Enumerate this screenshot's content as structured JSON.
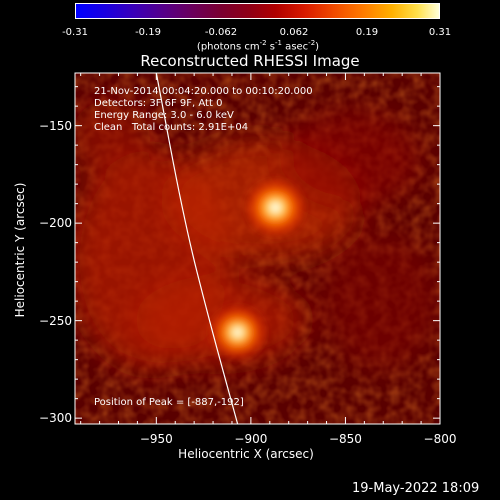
{
  "colorbar": {
    "ticks": [
      "-0.31",
      "-0.19",
      "-0.062",
      "0.062",
      "0.19",
      "0.31"
    ],
    "unit_text": "(photons cm",
    "unit_exp1": "-2",
    "unit_mid1": " s",
    "unit_exp2": "-1",
    "unit_mid2": " asec",
    "unit_exp3": "-2",
    "unit_end": ")",
    "range": [
      -0.31,
      0.31
    ]
  },
  "chart_data": {
    "type": "heatmap",
    "title": "Reconstructed RHESSI Image",
    "xlabel": "Heliocentric X (arcsec)",
    "ylabel": "Heliocentric Y (arcsec)",
    "xlim": [
      -993,
      -800
    ],
    "ylim": [
      -303,
      -123
    ],
    "xticks": [
      -950,
      -900,
      -850,
      -800
    ],
    "yticks": [
      -150,
      -200,
      -250,
      -300
    ],
    "xtick_labels": [
      "−950",
      "−900",
      "−850",
      "−800"
    ],
    "ytick_labels": [
      "−150",
      "−200",
      "−250",
      "−300"
    ],
    "sources": [
      {
        "x": -887,
        "y": -192,
        "intensity": 0.31
      },
      {
        "x": -907,
        "y": -256,
        "intensity": 0.24
      }
    ],
    "peak": [
      -887,
      -192
    ],
    "limb_curve": [
      [
        -950,
        -123
      ],
      [
        -935,
        -200
      ],
      [
        -922,
        -250
      ],
      [
        -907,
        -303
      ]
    ]
  },
  "annotations": {
    "line1": "21-Nov-2014 00:04:20.000 to 00:10:20.000",
    "line2": "Detectors: 3F 6F 9F, Att 0",
    "line3": "Energy Range: 3.0 - 6.0 keV",
    "line4": "Clean   Total counts: 2.91E+04",
    "peak_text": "Position of Peak = [-887,-192]"
  },
  "footer": "19-May-2022 18:09"
}
